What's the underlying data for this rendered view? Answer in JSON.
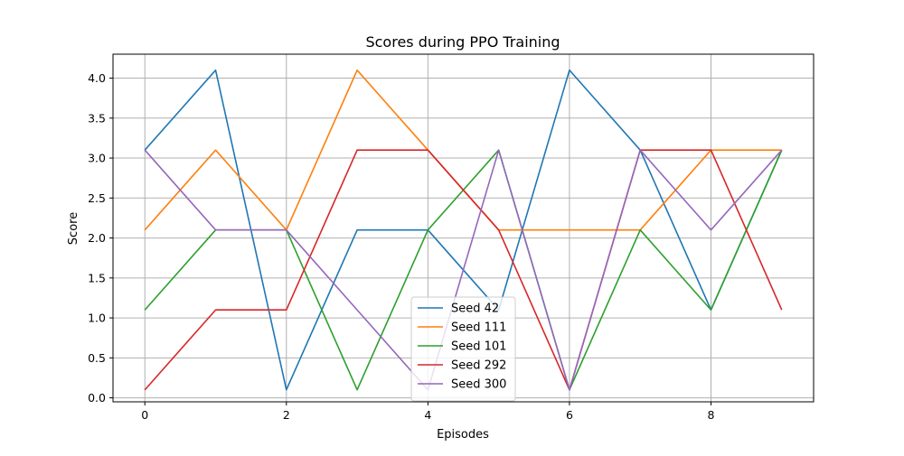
{
  "chart_data": {
    "type": "line",
    "title": "Scores during PPO Training",
    "xlabel": "Episodes",
    "ylabel": "Score",
    "x": [
      0,
      1,
      2,
      3,
      4,
      5,
      6,
      7,
      8,
      9
    ],
    "xlim": [
      -0.45,
      9.45
    ],
    "ylim": [
      -0.05,
      4.3
    ],
    "xticks": [
      0,
      2,
      4,
      6,
      8
    ],
    "yticks": [
      0.0,
      0.5,
      1.0,
      1.5,
      2.0,
      2.5,
      3.0,
      3.5,
      4.0
    ],
    "xtick_labels": [
      "0",
      "2",
      "4",
      "6",
      "8"
    ],
    "ytick_labels": [
      "0.0",
      "0.5",
      "1.0",
      "1.5",
      "2.0",
      "2.5",
      "3.0",
      "3.5",
      "4.0"
    ],
    "grid": true,
    "legend_position": "bottom-center",
    "series": [
      {
        "name": "Seed 42",
        "color": "#1f77b4",
        "values": [
          3.1,
          4.1,
          0.1,
          2.1,
          2.1,
          1.1,
          4.1,
          3.1,
          1.1,
          3.1
        ]
      },
      {
        "name": "Seed 111",
        "color": "#ff7f0e",
        "values": [
          2.1,
          3.1,
          2.1,
          4.1,
          3.1,
          2.1,
          2.1,
          2.1,
          3.1,
          3.1
        ]
      },
      {
        "name": "Seed 101",
        "color": "#2ca02c",
        "values": [
          1.1,
          2.1,
          2.1,
          0.1,
          2.1,
          3.1,
          0.1,
          2.1,
          1.1,
          3.1
        ]
      },
      {
        "name": "Seed 292",
        "color": "#d62728",
        "values": [
          0.1,
          1.1,
          1.1,
          3.1,
          3.1,
          2.1,
          0.1,
          3.1,
          3.1,
          1.1
        ]
      },
      {
        "name": "Seed 300",
        "color": "#9467bd",
        "values": [
          3.1,
          2.1,
          2.1,
          1.1,
          0.1,
          3.1,
          0.1,
          3.1,
          2.1,
          3.1
        ]
      }
    ]
  }
}
